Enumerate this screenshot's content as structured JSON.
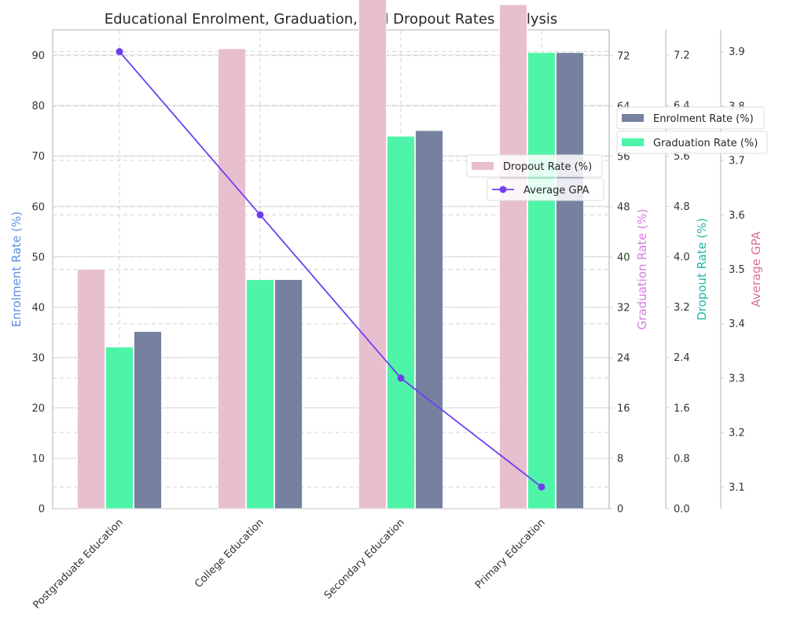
{
  "chart_data": {
    "type": "bar",
    "title": "Educational Enrolment, Graduation, and Dropout Rates Analysis",
    "categories": [
      "Postgraduate Education",
      "College Education",
      "Secondary Education",
      "Primary Education"
    ],
    "series": [
      {
        "name": "Dropout Rate (%)",
        "values": [
          3.8,
          7.3,
          11.3,
          8.0
        ],
        "color": "#e8bfcf",
        "axis": "dropout"
      },
      {
        "name": "Graduation Rate (%)",
        "values": [
          25.7,
          36.4,
          59.2,
          72.5
        ],
        "color": "#4ef4a8",
        "axis": "graduation"
      },
      {
        "name": "Enrolment Rate (%)",
        "values": [
          35.2,
          45.5,
          75.1,
          90.6
        ],
        "color": "#75819f",
        "axis": "enrolment"
      },
      {
        "name": "Average GPA",
        "values": [
          3.9,
          3.6,
          3.3,
          3.1
        ],
        "color": "#6e3ff0",
        "axis": "gpa",
        "type": "line"
      }
    ],
    "axes": {
      "enrolment": {
        "label": "Enrolment Rate (%)",
        "color": "#5b8ee6",
        "ylim": [
          0,
          95.1
        ],
        "ticks": [
          0,
          10,
          20,
          30,
          40,
          50,
          60,
          70,
          80,
          90
        ]
      },
      "graduation": {
        "label": "Graduation Rate (%)",
        "color": "#d77ce0",
        "ylim": [
          0,
          76.1
        ],
        "ticks": [
          "0",
          "8",
          "16",
          "24",
          "32",
          "40",
          "48",
          "56",
          "64",
          "72"
        ]
      },
      "dropout": {
        "label": "Dropout Rate (%)",
        "color": "#22b8a3",
        "ylim": [
          0,
          7.6
        ],
        "ticks": [
          "0.0",
          "0.8",
          "1.6",
          "2.4",
          "3.2",
          "4.0",
          "4.8",
          "5.6",
          "6.4",
          "7.2"
        ]
      },
      "gpa": {
        "label": "Average GPA",
        "color": "#dd7092",
        "ylim": [
          3.06,
          3.94
        ],
        "ticks": [
          "3.1",
          "3.2",
          "3.3",
          "3.4",
          "3.5",
          "3.6",
          "3.7",
          "3.8",
          "3.9"
        ]
      }
    },
    "legends": [
      {
        "name": "Enrolment Rate (%)",
        "placement": "right"
      },
      {
        "name": "Graduation Rate (%)",
        "placement": "right"
      },
      {
        "name": "Dropout Rate (%)",
        "placement": "upper-right"
      },
      {
        "name": "Average GPA",
        "placement": "upper-right"
      }
    ],
    "grid": true
  }
}
